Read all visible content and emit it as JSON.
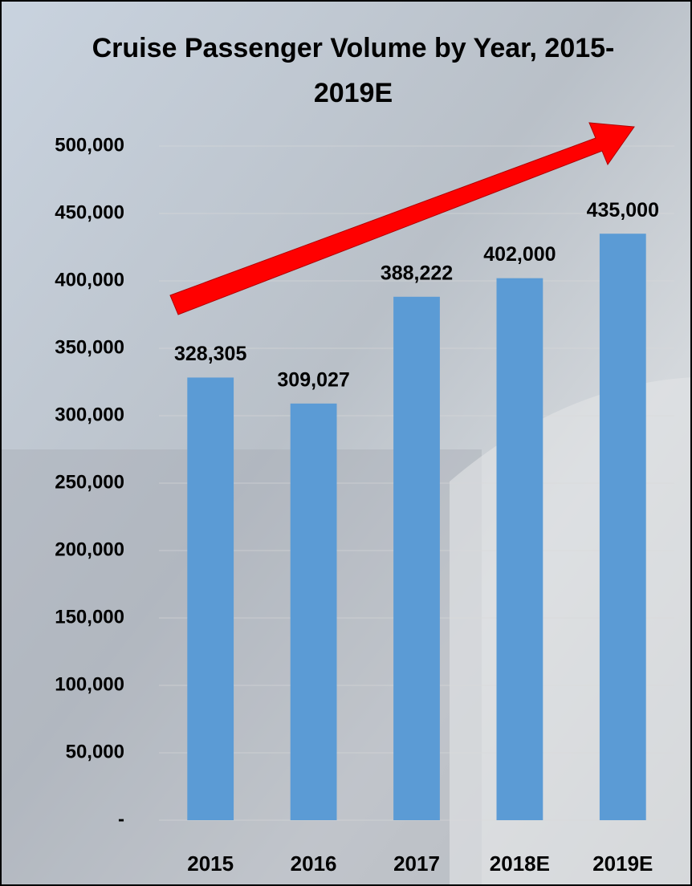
{
  "chart_data": {
    "type": "bar",
    "title": "Cruise Passenger Volume by Year, 2015-2019E",
    "categories": [
      "2015",
      "2016",
      "2017",
      "2018E",
      "2019E"
    ],
    "values": [
      328305,
      309027,
      388222,
      402000,
      435000
    ],
    "value_labels": [
      "328,305",
      "309,027",
      "388,222",
      "402,000",
      "435,000"
    ],
    "color": "#5b9bd5",
    "ylim": [
      0,
      500000
    ],
    "yticks": [
      {
        "value": 0,
        "label": "-"
      },
      {
        "value": 50000,
        "label": "50,000"
      },
      {
        "value": 100000,
        "label": "100,000"
      },
      {
        "value": 150000,
        "label": "150,000"
      },
      {
        "value": 200000,
        "label": "200,000"
      },
      {
        "value": 250000,
        "label": "250,000"
      },
      {
        "value": 300000,
        "label": "300,000"
      },
      {
        "value": 350000,
        "label": "350,000"
      },
      {
        "value": 400000,
        "label": "400,000"
      },
      {
        "value": 450000,
        "label": "450,000"
      },
      {
        "value": 500000,
        "label": "500,000"
      }
    ],
    "grid": true
  }
}
